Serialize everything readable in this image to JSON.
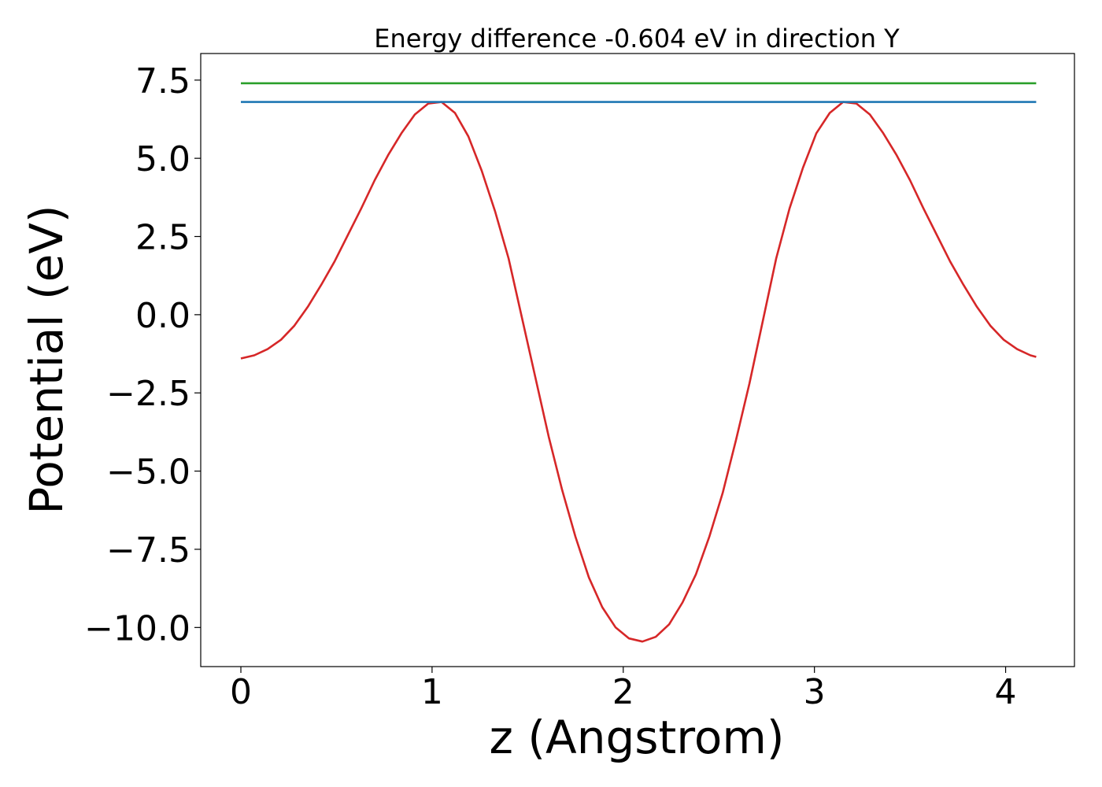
{
  "chart_data": {
    "type": "line",
    "title": "Energy difference -0.604 eV in direction Y",
    "xlabel": "z (Angstrom)",
    "ylabel": "Potential (eV)",
    "xlim": [
      -0.21,
      4.36
    ],
    "ylim": [
      -11.25,
      8.35
    ],
    "xticks": [
      0,
      1,
      2,
      3,
      4
    ],
    "xtick_labels": [
      "0",
      "1",
      "2",
      "3",
      "4"
    ],
    "yticks": [
      7.5,
      5.0,
      2.5,
      0.0,
      -2.5,
      -5.0,
      -7.5,
      -10.0
    ],
    "ytick_labels": [
      "7.5",
      "5.0",
      "2.5",
      "0.0",
      "−2.5",
      "−5.0",
      "−7.5",
      "−10.0"
    ],
    "grid": false,
    "legend": "none",
    "series": [
      {
        "color": "#d62728",
        "x": [
          0.0,
          0.07,
          0.14,
          0.21,
          0.28,
          0.35,
          0.42,
          0.49,
          0.56,
          0.63,
          0.7,
          0.77,
          0.84,
          0.91,
          0.98,
          1.05,
          1.12,
          1.19,
          1.26,
          1.33,
          1.4,
          1.47,
          1.54,
          1.61,
          1.68,
          1.75,
          1.82,
          1.89,
          1.96,
          2.03,
          2.1,
          2.17,
          2.24,
          2.31,
          2.38,
          2.45,
          2.52,
          2.59,
          2.66,
          2.73,
          2.8,
          2.87,
          2.94,
          3.01,
          3.08,
          3.15,
          3.22,
          3.29,
          3.36,
          3.43,
          3.5,
          3.57,
          3.64,
          3.71,
          3.78,
          3.85,
          3.92,
          3.99,
          4.06,
          4.13,
          4.16
        ],
        "y": [
          -1.4,
          -1.3,
          -1.1,
          -0.8,
          -0.35,
          0.25,
          0.95,
          1.7,
          2.55,
          3.4,
          4.3,
          5.1,
          5.8,
          6.4,
          6.75,
          6.8,
          6.45,
          5.7,
          4.6,
          3.3,
          1.8,
          -0.1,
          -2.0,
          -3.9,
          -5.6,
          -7.1,
          -8.4,
          -9.35,
          -10.0,
          -10.35,
          -10.45,
          -10.3,
          -9.9,
          -9.2,
          -8.3,
          -7.1,
          -5.7,
          -4.0,
          -2.2,
          -0.2,
          1.8,
          3.4,
          4.7,
          5.8,
          6.45,
          6.8,
          6.75,
          6.4,
          5.8,
          5.1,
          4.3,
          3.4,
          2.55,
          1.7,
          0.95,
          0.25,
          -0.35,
          -0.8,
          -1.1,
          -1.3,
          -1.35
        ]
      },
      {
        "color": "#1f77b4",
        "x": [
          0.0,
          4.16
        ],
        "y": [
          6.8,
          6.8
        ]
      },
      {
        "color": "#2ca02c",
        "x": [
          0.0,
          4.16
        ],
        "y": [
          7.4,
          7.4
        ]
      }
    ]
  }
}
